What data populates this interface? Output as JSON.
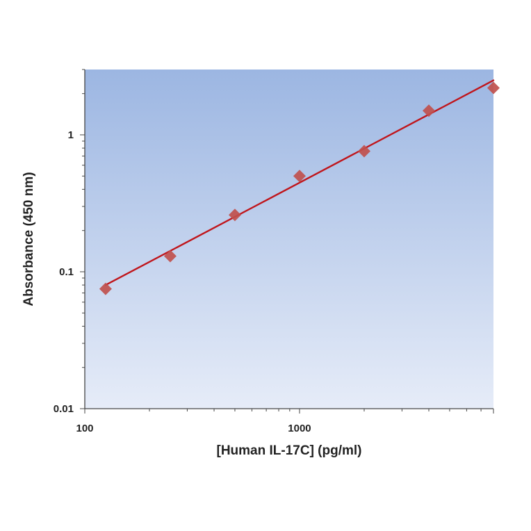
{
  "chart_data": {
    "type": "scatter",
    "title": "",
    "xlabel": "[Human IL-17C] (pg/ml)",
    "ylabel": "Absorbance (450 nm)",
    "x_scale": "log",
    "y_scale": "log",
    "xlim": [
      100,
      8000
    ],
    "ylim": [
      0.01,
      3
    ],
    "x_ticks": [
      100,
      1000
    ],
    "x_tick_labels": [
      "100",
      "1000"
    ],
    "y_ticks": [
      0.01,
      0.1,
      1
    ],
    "y_tick_labels": [
      "0.01",
      "0.1",
      "1"
    ],
    "grid": false,
    "legend": "none",
    "series": [
      {
        "x": [
          125,
          250,
          500,
          1000,
          2000,
          4000,
          8000
        ],
        "y": [
          0.075,
          0.13,
          0.26,
          0.5,
          0.76,
          1.5,
          2.2
        ],
        "marker": "diamond",
        "color": "#c0504d"
      }
    ],
    "fit_line": {
      "x": [
        125,
        8000
      ],
      "y": [
        0.08,
        2.5
      ],
      "color": "#c0151b"
    },
    "background_gradient": [
      "#9cb6e2",
      "#e6ecf8"
    ]
  }
}
